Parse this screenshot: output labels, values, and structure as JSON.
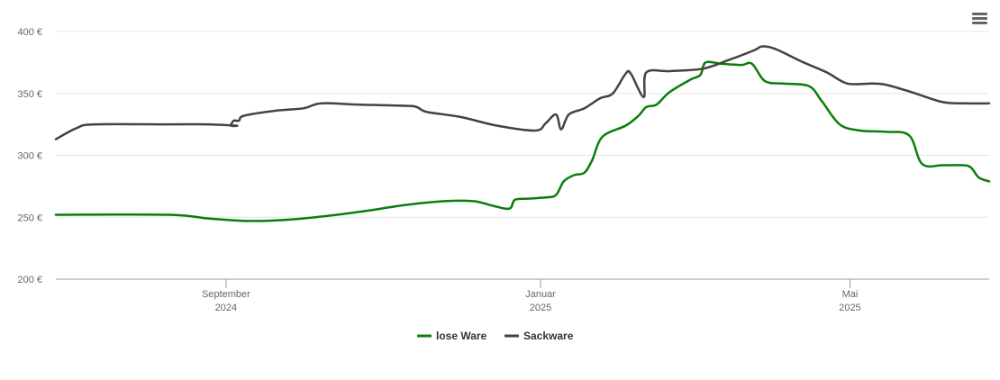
{
  "menu": {
    "icon": "hamburger-menu-icon"
  },
  "chart_data": {
    "type": "line",
    "title": "",
    "xlabel": "",
    "ylabel": "",
    "ylim": [
      200,
      400
    ],
    "yticks": [
      200,
      250,
      300,
      350,
      400
    ],
    "y_tick_labels": [
      "200 €",
      "250 €",
      "300 €",
      "350 €",
      "400 €"
    ],
    "xlim": [
      "2024-06-27",
      "2025-06-24"
    ],
    "x_ticks": [
      {
        "date": "2024-09-01",
        "month": "September",
        "year": "2024"
      },
      {
        "date": "2025-01-01",
        "month": "Januar",
        "year": "2025"
      },
      {
        "date": "2025-05-01",
        "month": "Mai",
        "year": "2025"
      }
    ],
    "grid": true,
    "legend_position": "bottom-center",
    "series": [
      {
        "name": "lose Ware",
        "color": "#0a7e0a",
        "points": [
          [
            "2024-06-27",
            252
          ],
          [
            "2024-08-10",
            252
          ],
          [
            "2024-08-25",
            249
          ],
          [
            "2024-09-10",
            247
          ],
          [
            "2024-09-25",
            248
          ],
          [
            "2024-10-10",
            251
          ],
          [
            "2024-10-25",
            255
          ],
          [
            "2024-11-10",
            260
          ],
          [
            "2024-11-25",
            263
          ],
          [
            "2024-12-06",
            263
          ],
          [
            "2024-12-14",
            259
          ],
          [
            "2024-12-20",
            257
          ],
          [
            "2024-12-22",
            264
          ],
          [
            "2024-12-27",
            265
          ],
          [
            "2025-01-03",
            266
          ],
          [
            "2025-01-07",
            268
          ],
          [
            "2025-01-10",
            279
          ],
          [
            "2025-01-14",
            284
          ],
          [
            "2025-01-18",
            286
          ],
          [
            "2025-01-21",
            296
          ],
          [
            "2025-01-25",
            315
          ],
          [
            "2025-02-03",
            324
          ],
          [
            "2025-02-08",
            332
          ],
          [
            "2025-02-11",
            339
          ],
          [
            "2025-02-15",
            341
          ],
          [
            "2025-02-20",
            351
          ],
          [
            "2025-02-28",
            361
          ],
          [
            "2025-03-04",
            365
          ],
          [
            "2025-03-06",
            375
          ],
          [
            "2025-03-12",
            374
          ],
          [
            "2025-03-20",
            373
          ],
          [
            "2025-03-24",
            374
          ],
          [
            "2025-03-29",
            360
          ],
          [
            "2025-04-05",
            358
          ],
          [
            "2025-04-15",
            356
          ],
          [
            "2025-04-20",
            344
          ],
          [
            "2025-04-27",
            325
          ],
          [
            "2025-05-05",
            320
          ],
          [
            "2025-05-15",
            319
          ],
          [
            "2025-05-24",
            316
          ],
          [
            "2025-05-29",
            293
          ],
          [
            "2025-06-06",
            292
          ],
          [
            "2025-06-14",
            292
          ],
          [
            "2025-06-17",
            290
          ],
          [
            "2025-06-20",
            282
          ],
          [
            "2025-06-24",
            279
          ]
        ]
      },
      {
        "name": "Sackware",
        "color": "#434343",
        "points": [
          [
            "2024-06-27",
            313
          ],
          [
            "2024-07-05",
            322
          ],
          [
            "2024-07-12",
            325
          ],
          [
            "2024-08-10",
            325
          ],
          [
            "2024-08-25",
            325
          ],
          [
            "2024-09-05",
            324
          ],
          [
            "2024-09-03",
            324
          ],
          [
            "2024-09-04",
            328
          ],
          [
            "2024-09-06",
            328
          ],
          [
            "2024-09-08",
            332
          ],
          [
            "2024-09-20",
            336
          ],
          [
            "2024-10-01",
            338
          ],
          [
            "2024-10-08",
            342
          ],
          [
            "2024-10-22",
            341
          ],
          [
            "2024-11-10",
            340
          ],
          [
            "2024-11-14",
            339
          ],
          [
            "2024-11-18",
            335
          ],
          [
            "2024-12-01",
            331
          ],
          [
            "2024-12-15",
            324
          ],
          [
            "2024-12-30",
            320
          ],
          [
            "2025-01-03",
            326
          ],
          [
            "2025-01-07",
            333
          ],
          [
            "2025-01-09",
            321
          ],
          [
            "2025-01-12",
            333
          ],
          [
            "2025-01-18",
            338
          ],
          [
            "2025-01-24",
            346
          ],
          [
            "2025-01-29",
            350
          ],
          [
            "2025-02-03",
            366
          ],
          [
            "2025-02-05",
            366
          ],
          [
            "2025-02-10",
            347
          ],
          [
            "2025-02-11",
            367
          ],
          [
            "2025-02-20",
            368
          ],
          [
            "2025-03-05",
            370
          ],
          [
            "2025-03-15",
            377
          ],
          [
            "2025-03-25",
            385
          ],
          [
            "2025-03-28",
            388
          ],
          [
            "2025-04-02",
            386
          ],
          [
            "2025-04-12",
            376
          ],
          [
            "2025-04-22",
            367
          ],
          [
            "2025-04-30",
            358
          ],
          [
            "2025-05-10",
            358
          ],
          [
            "2025-05-15",
            357
          ],
          [
            "2025-05-25",
            351
          ],
          [
            "2025-06-06",
            343
          ],
          [
            "2025-06-15",
            342
          ],
          [
            "2025-06-24",
            342
          ]
        ]
      }
    ]
  }
}
